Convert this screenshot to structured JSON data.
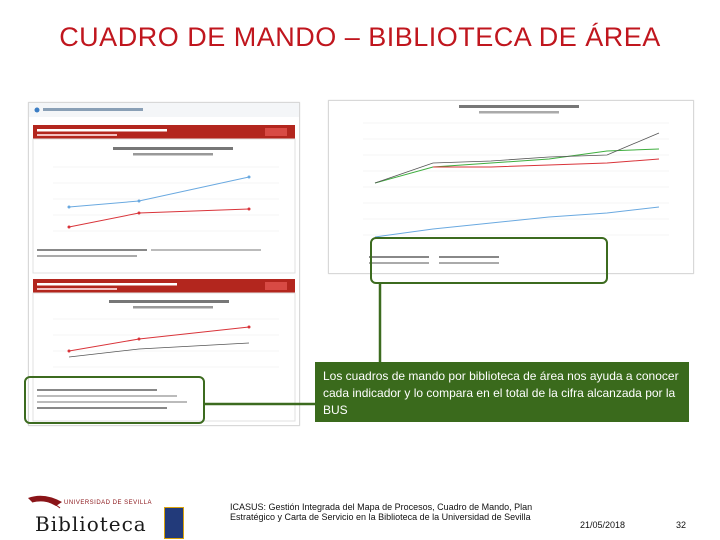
{
  "slide": {
    "title": "CUADRO DE MANDO – BIBLIOTECA DE ÁREA",
    "callout_text": "Los cuadros de mando por biblioteca de área nos ayuda a conocer cada indicador y lo compara en el total de la cifra alcanzada por la BUS",
    "footer_text": "ICASUS: Gestión Integrada del Mapa de Procesos, Cuadro de Mando, Plan Estratégico y Carta de Servicio en la Biblioteca de la Universidad de Sevilla",
    "date": "21/05/2018",
    "page_number": "32"
  },
  "logo": {
    "org_line": "UNIVERSIDAD DE SEVILLA",
    "word": "Biblioteca"
  },
  "colors": {
    "title": "#c0161e",
    "highlight": "#3c6b1f",
    "callout_bg": "#3a6a1c",
    "panel_header": "#b3261e",
    "series_red": "#d9343a",
    "series_green": "#3fae3f",
    "series_blue": "#6aa9e0",
    "series_gray": "#555555"
  }
}
